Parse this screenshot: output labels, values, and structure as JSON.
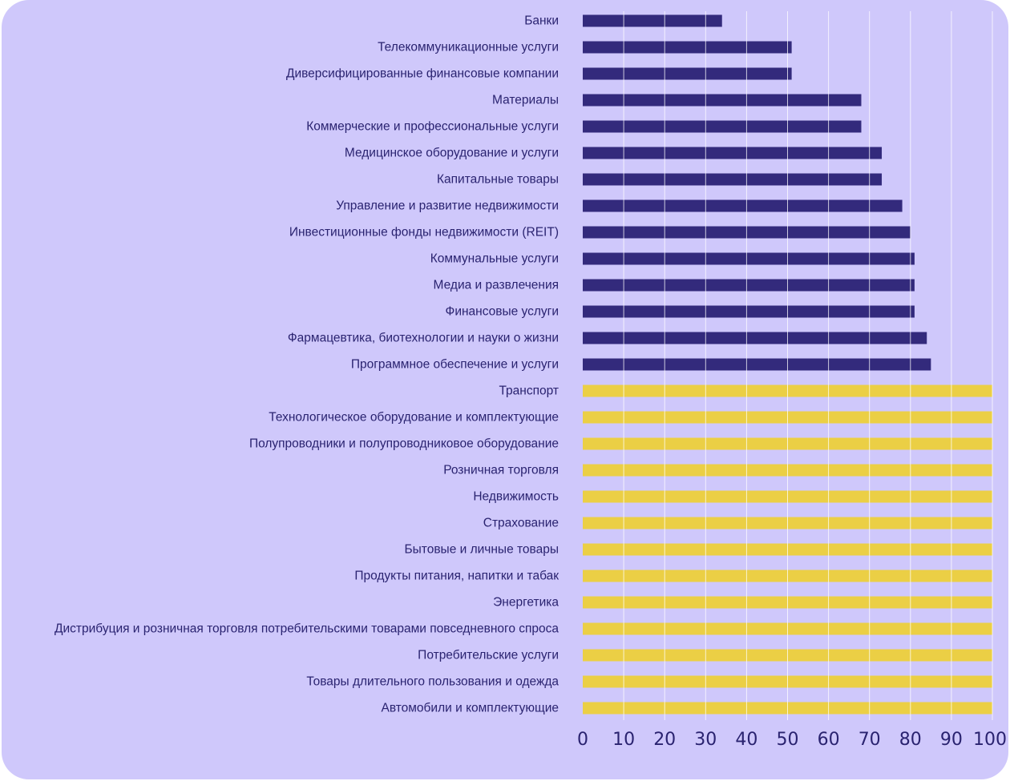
{
  "chart_data": {
    "type": "bar",
    "orientation": "horizontal",
    "title": "",
    "xlabel": "",
    "ylabel": "",
    "xlim": [
      0,
      100
    ],
    "x_ticks": [
      "0",
      "10",
      "20",
      "30",
      "40",
      "50",
      "60",
      "70",
      "80",
      "90",
      "100"
    ],
    "grid": true,
    "colors": {
      "background": "#cfc8fb",
      "below_100": "#332a7c",
      "at_100": "#ebcf45",
      "text": "#2a2370",
      "grid": "#ffffff"
    },
    "categories": [
      "Банки",
      "Телекоммуникационные услуги",
      "Диверсифицированные финансовые компании",
      "Материалы",
      "Коммерческие и профессиональные услуги",
      "Медицинское оборудование и услуги",
      "Капитальные товары",
      "Управление и развитие недвижимости",
      "Инвестиционные фонды недвижимости (REIT)",
      "Коммунальные услуги",
      "Медиа и развлечения",
      "Финансовые услуги",
      "Фармацевтика, биотехнологии и науки о жизни",
      "Программное обеспечение и услуги",
      "Транспорт",
      "Технологическое оборудование и комплектующие",
      "Полупроводники и полупроводниковое оборудование",
      "Розничная торговля",
      "Недвижимость",
      "Страхование",
      "Бытовые и личные товары",
      "Продукты питания, напитки и табак",
      "Энергетика",
      "Дистрибуция и розничная торговля потребительскими товарами повседневного спроса",
      "Потребительские услуги",
      "Товары длительного пользования и одежда",
      "Автомобили и комплектующие"
    ],
    "values": [
      34,
      51,
      51,
      68,
      68,
      73,
      73,
      78,
      80,
      81,
      81,
      81,
      84,
      85,
      100,
      100,
      100,
      100,
      100,
      100,
      100,
      100,
      100,
      100,
      100,
      100,
      100
    ]
  }
}
